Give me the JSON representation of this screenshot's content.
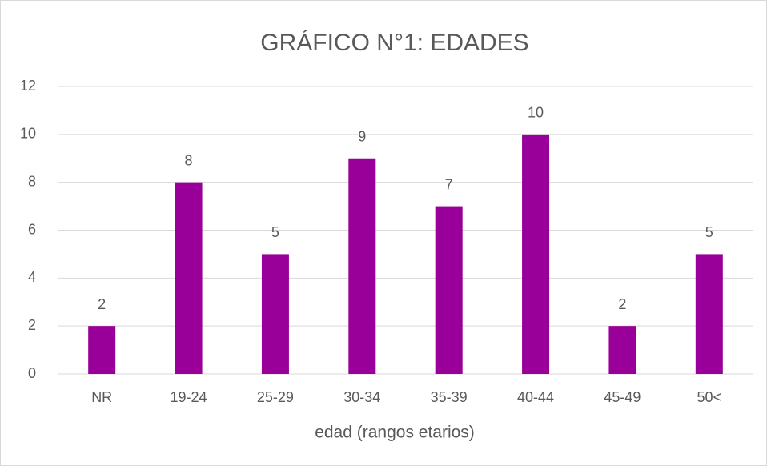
{
  "chart_data": {
    "type": "bar",
    "title": "GRÁFICO N°1: EDADES",
    "x_label": "edad (rangos etarios)",
    "categories": [
      "NR",
      "19-24",
      "25-29",
      "30-34",
      "35-39",
      "40-44",
      "45-49",
      "50<"
    ],
    "values": [
      2,
      8,
      5,
      9,
      7,
      10,
      2,
      5
    ],
    "color": "#990099",
    "ylim": [
      0,
      12
    ],
    "yticks": [
      0,
      2,
      4,
      6,
      8,
      10,
      12
    ],
    "grid": true
  }
}
